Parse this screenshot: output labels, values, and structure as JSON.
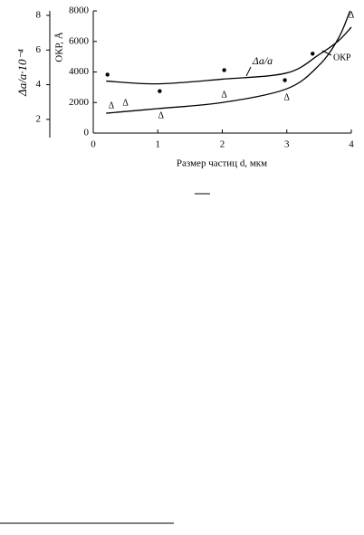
{
  "chart_data": {
    "type": "line",
    "xlabel": "Размер частиц d, мкм",
    "ylabel": "ОКР, Å",
    "y2label": "Δa/a·10⁻⁴",
    "xlim": [
      0,
      4
    ],
    "xticks": [
      0,
      1,
      2,
      3,
      4
    ],
    "ylim": [
      0,
      8000
    ],
    "yticks": [
      0,
      2000,
      4000,
      6000,
      8000
    ],
    "y2lim": [
      0.95,
      8.26
    ],
    "y2ticks": [
      2,
      4,
      6,
      8
    ],
    "color": "#000000",
    "series": [
      {
        "name": "Δa/a",
        "axis": "y2",
        "kind": "curve",
        "x": [
          0.2,
          1.0,
          2.0,
          3.0,
          3.5,
          3.8,
          4.0
        ],
        "values": [
          4.21,
          4.05,
          4.32,
          4.68,
          5.74,
          6.53,
          7.32
        ]
      },
      {
        "name": "ОКР",
        "kind": "curve",
        "x": [
          0.2,
          1.0,
          2.0,
          3.0,
          3.5,
          3.8,
          3.98
        ],
        "values": [
          1300,
          1600,
          2000,
          2900,
          4440,
          6200,
          8000
        ]
      },
      {
        "marker": "dot",
        "axis": "y2",
        "kind": "points",
        "x": [
          0.22,
          1.03,
          2.03,
          2.97,
          3.4
        ],
        "values": [
          4.58,
          3.63,
          4.84,
          4.26,
          5.79
        ]
      },
      {
        "marker": "Δ",
        "kind": "points",
        "x": [
          0.28,
          0.5,
          1.05,
          2.03,
          3.0,
          4.0
        ],
        "values": [
          1780,
          1950,
          1120,
          2490,
          2300,
          7700
        ]
      }
    ]
  }
}
